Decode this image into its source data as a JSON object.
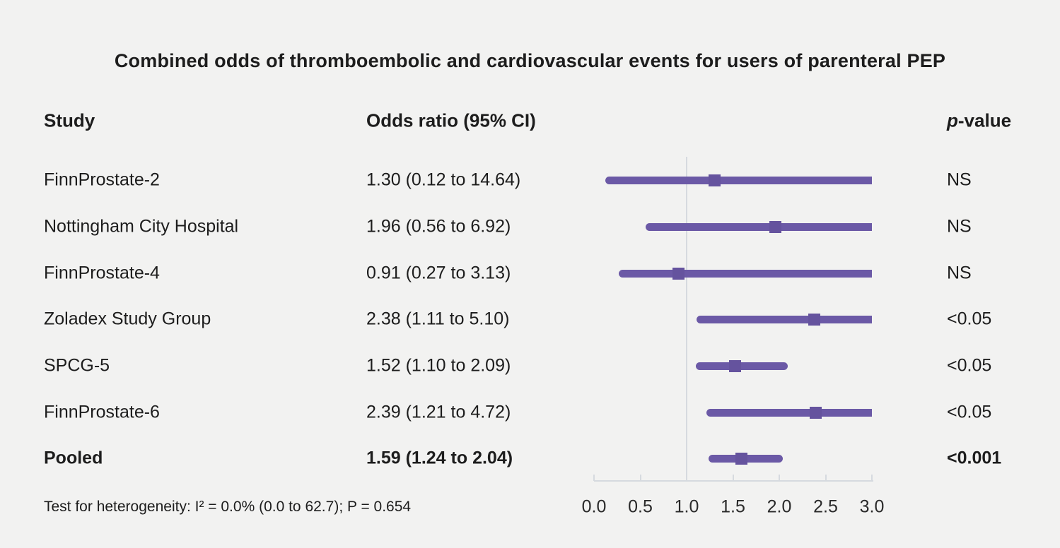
{
  "title": "Combined odds of thromboembolic and cardiovascular events for users of parenteral PEP",
  "columns": {
    "study": "Study",
    "odds_ratio": "Odds ratio (95% CI)",
    "p_value_italic_part": "p",
    "p_value_rest": "-value"
  },
  "footnote": "Test for heterogeneity: I² = 0.0% (0.0 to 62.7); P = 0.654",
  "colors": {
    "accent_purple": "#6b59a6",
    "marker_purple": "#65539e",
    "axis_gray": "#d6dadf",
    "background": "#f2f2f1",
    "text": "#1d1d1d"
  },
  "chart_data": {
    "type": "forest",
    "title": "Combined odds of thromboembolic and cardiovascular events for users of parenteral PEP",
    "xlim": [
      0.0,
      3.0
    ],
    "reference_line": 1.0,
    "clip_note": "confidence intervals wider than 3.0 are truncated flat at 3.0",
    "x_tick_labels": [
      "0.0",
      "0.5",
      "1.0",
      "1.5",
      "2.0",
      "2.5",
      "3.0"
    ],
    "rows": [
      {
        "study": "FinnProstate-2",
        "or": 1.3,
        "ci_low": 0.12,
        "ci_high": 14.64,
        "estimate_label": "1.30 (0.12 to 14.64)",
        "p": "NS",
        "bold": false
      },
      {
        "study": "Nottingham City Hospital",
        "or": 1.96,
        "ci_low": 0.56,
        "ci_high": 6.92,
        "estimate_label": "1.96 (0.56 to 6.92)",
        "p": "NS",
        "bold": false
      },
      {
        "study": "FinnProstate-4",
        "or": 0.91,
        "ci_low": 0.27,
        "ci_high": 3.13,
        "estimate_label": "0.91 (0.27 to 3.13)",
        "p": "NS",
        "bold": false
      },
      {
        "study": "Zoladex Study Group",
        "or": 2.38,
        "ci_low": 1.11,
        "ci_high": 5.1,
        "estimate_label": "2.38 (1.11 to 5.10)",
        "p": "<0.05",
        "bold": false
      },
      {
        "study": "SPCG-5",
        "or": 1.52,
        "ci_low": 1.1,
        "ci_high": 2.09,
        "estimate_label": "1.52 (1.10 to 2.09)",
        "p": "<0.05",
        "bold": false
      },
      {
        "study": "FinnProstate-6",
        "or": 2.39,
        "ci_low": 1.21,
        "ci_high": 4.72,
        "estimate_label": "2.39 (1.21 to 4.72)",
        "p": "<0.05",
        "bold": false
      },
      {
        "study": "Pooled",
        "or": 1.59,
        "ci_low": 1.24,
        "ci_high": 2.04,
        "estimate_label": "1.59 (1.24 to 2.04)",
        "p": "<0.001",
        "bold": true
      }
    ],
    "heterogeneity": "Test for heterogeneity: I² = 0.0% (0.0 to 62.7); P = 0.654",
    "legend": "none",
    "grid": "off"
  }
}
